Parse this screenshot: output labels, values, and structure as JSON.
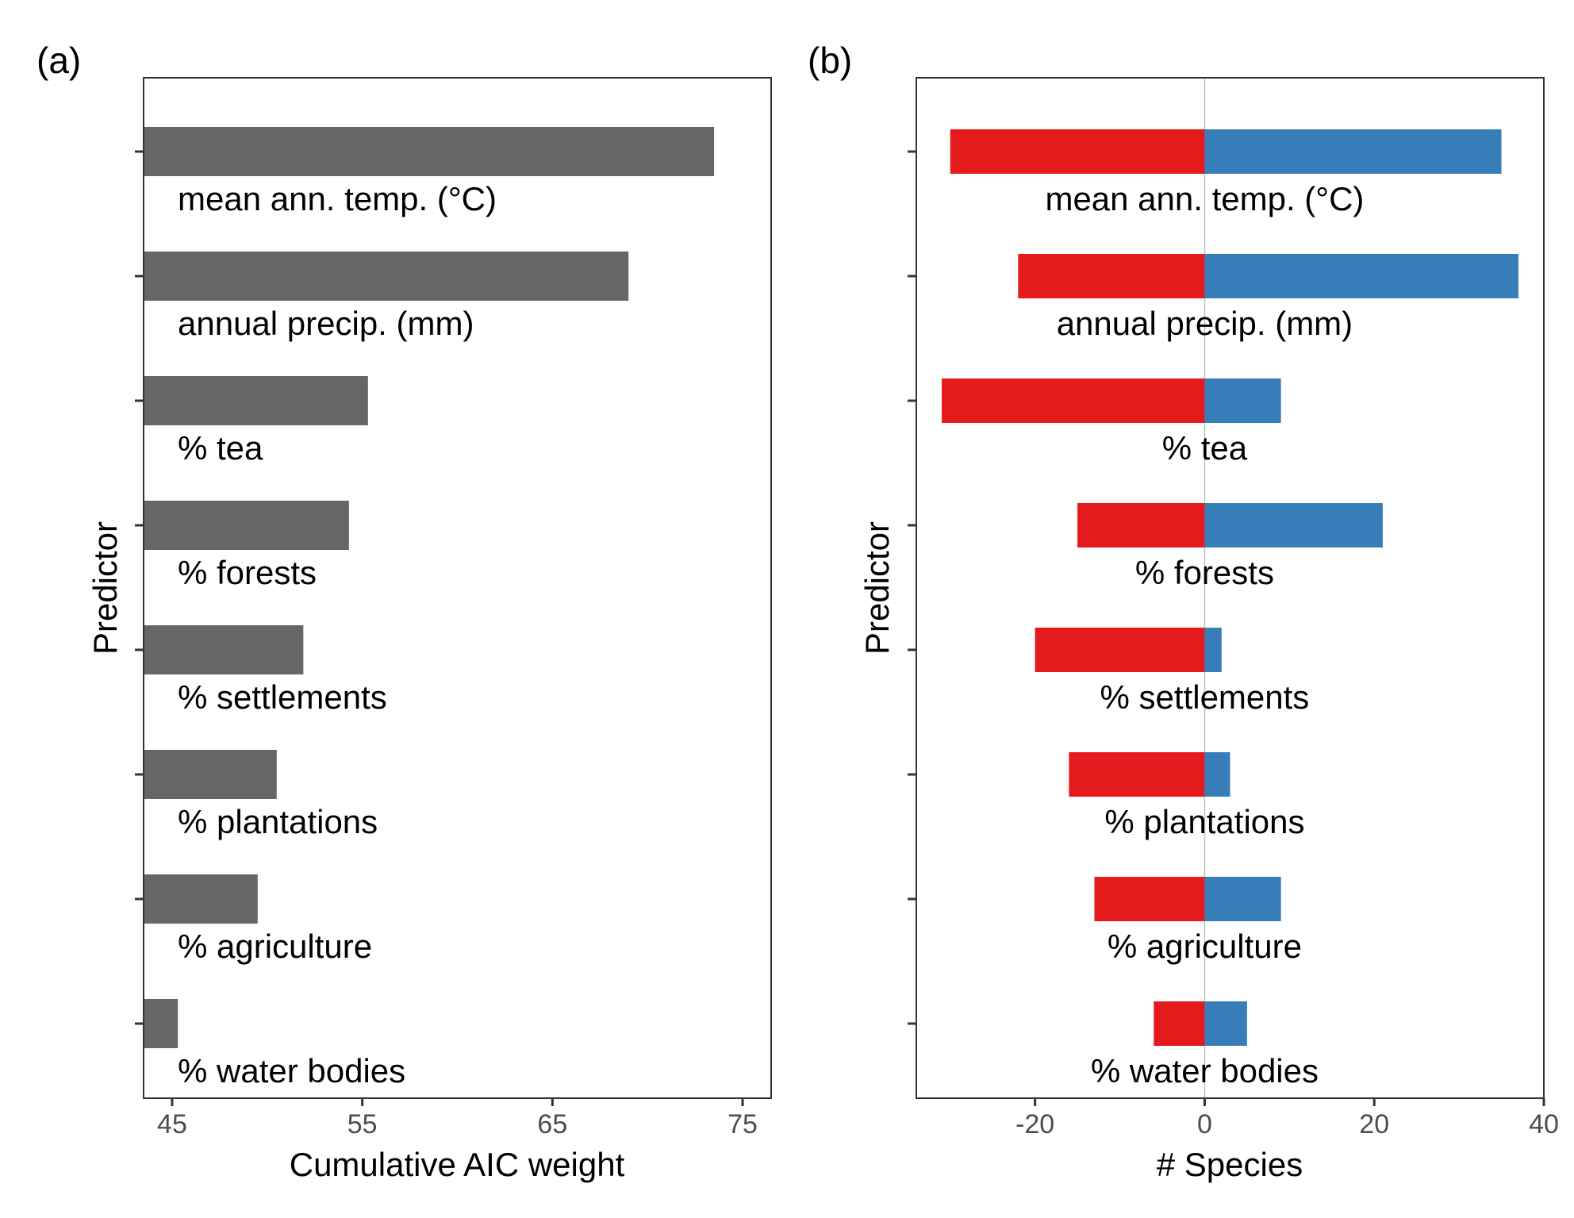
{
  "chart_data": [
    {
      "panel": "(a)",
      "type": "bar",
      "orientation": "horizontal",
      "xlabel": "Cumulative AIC weight",
      "ylabel": "Predictor",
      "xlim": [
        43.5,
        76.5
      ],
      "xticks": [
        45,
        55,
        65,
        75
      ],
      "xtick_labels": [
        "45",
        "55",
        "65",
        "75"
      ],
      "categories": [
        "mean ann. temp. (°C)",
        "annual precip. (mm)",
        "% tea",
        "% forests",
        "% settlements",
        "% plantations",
        "% agriculture",
        "% water bodies"
      ],
      "values": [
        73.5,
        69,
        55.3,
        54.3,
        51.9,
        50.5,
        49.5,
        45.3
      ],
      "bar_color": "#666666",
      "grid": false
    },
    {
      "panel": "(b)",
      "type": "bar",
      "orientation": "horizontal",
      "stacked": "diverging",
      "xlabel": "# Species",
      "ylabel": "Predictor",
      "xlim": [
        -34,
        40
      ],
      "xticks": [
        -20,
        0,
        20,
        40
      ],
      "xtick_labels": [
        "-20",
        "0",
        "20",
        "40"
      ],
      "categories": [
        "mean ann. temp. (°C)",
        "annual precip. (mm)",
        "% tea",
        "% forests",
        "% settlements",
        "% plantations",
        "% agriculture",
        "% water bodies"
      ],
      "series": [
        {
          "color": "#e41a1c",
          "values": [
            -30,
            -22,
            -31,
            -15,
            -20,
            -16,
            -13,
            -6
          ]
        },
        {
          "color": "#377eb8",
          "values": [
            35,
            37,
            9,
            21,
            2,
            3,
            9,
            5
          ]
        }
      ],
      "zero_line_color": "#bebebe",
      "grid": false
    }
  ]
}
